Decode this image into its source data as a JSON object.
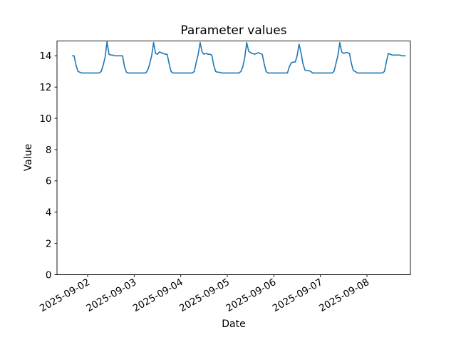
{
  "chart_data": {
    "type": "line",
    "title": "Parameter values",
    "xlabel": "Date",
    "ylabel": "Value",
    "line_color": "#1f77b4",
    "background_color": "#ffffff",
    "axis_color": "#000000",
    "grid": false,
    "legend": "none",
    "y_ticks": [
      0,
      2,
      4,
      6,
      8,
      10,
      12,
      14
    ],
    "ylim": [
      0,
      14.95
    ],
    "x_tick_labels": [
      "2025-09-02",
      "2025-09-03",
      "2025-09-04",
      "2025-09-05",
      "2025-09-06",
      "2025-09-07",
      "2025-09-08"
    ],
    "x_tick_hours": [
      24,
      48,
      72,
      96,
      120,
      144,
      168
    ],
    "xlim_hours": [
      8.2,
      190.4
    ],
    "x_tick_rotation_deg": 30,
    "series": [
      {
        "name": "parameter",
        "start": "2025-09-01 16:00",
        "start_hour": 16,
        "step_hours": 1,
        "values": [
          14.0,
          14.0,
          13.4,
          13.0,
          12.95,
          12.9,
          12.9,
          12.9,
          12.9,
          12.9,
          12.9,
          12.9,
          12.9,
          12.9,
          12.9,
          13.0,
          13.4,
          13.9,
          14.9,
          14.1,
          14.05,
          14.05,
          14.0,
          14.0,
          14.0,
          14.0,
          14.0,
          13.3,
          12.95,
          12.9,
          12.9,
          12.9,
          12.9,
          12.9,
          12.9,
          12.9,
          12.9,
          12.9,
          12.9,
          13.1,
          13.5,
          14.0,
          14.85,
          14.15,
          14.1,
          14.25,
          14.2,
          14.15,
          14.1,
          14.1,
          13.5,
          13.0,
          12.9,
          12.9,
          12.9,
          12.9,
          12.9,
          12.9,
          12.9,
          12.9,
          12.9,
          12.9,
          12.9,
          13.0,
          13.6,
          14.1,
          14.85,
          14.25,
          14.1,
          14.15,
          14.1,
          14.1,
          14.05,
          13.4,
          13.0,
          12.95,
          12.95,
          12.9,
          12.9,
          12.9,
          12.9,
          12.9,
          12.9,
          12.9,
          12.9,
          12.9,
          12.9,
          13.0,
          13.3,
          13.9,
          14.85,
          14.3,
          14.2,
          14.15,
          14.1,
          14.15,
          14.2,
          14.15,
          14.1,
          13.5,
          13.0,
          12.9,
          12.9,
          12.9,
          12.9,
          12.9,
          12.9,
          12.9,
          12.9,
          12.9,
          12.9,
          12.9,
          13.3,
          13.55,
          13.6,
          13.6,
          14.0,
          14.75,
          14.2,
          13.5,
          13.1,
          13.05,
          13.05,
          13.0,
          12.9,
          12.9,
          12.9,
          12.9,
          12.9,
          12.9,
          12.9,
          12.9,
          12.9,
          12.9,
          12.9,
          13.0,
          13.5,
          14.0,
          14.85,
          14.25,
          14.15,
          14.2,
          14.2,
          14.15,
          13.5,
          13.05,
          13.0,
          12.9,
          12.9,
          12.9,
          12.9,
          12.9,
          12.9,
          12.9,
          12.9,
          12.9,
          12.9,
          12.9,
          12.9,
          12.9,
          12.9,
          13.0,
          13.6,
          14.15,
          14.1,
          14.05,
          14.05,
          14.05,
          14.05,
          14.05,
          14.0,
          14.0,
          14.0
        ]
      }
    ]
  }
}
